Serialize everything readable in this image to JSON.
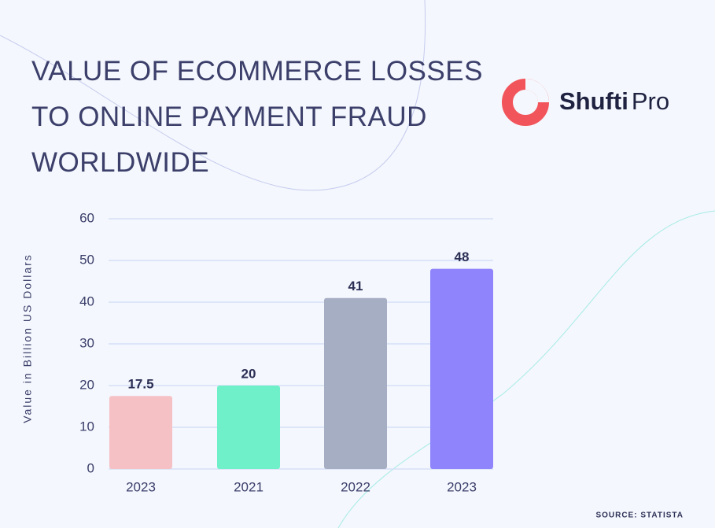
{
  "chart_data": {
    "type": "bar",
    "title": "VALUE OF ECOMMERCE LOSSES TO ONLINE PAYMENT FRAUD WORLDWIDE",
    "y_label": "Value in Billion US Dollars",
    "categories": [
      "2023",
      "2021",
      "2022",
      "2023"
    ],
    "values": [
      17.5,
      20,
      41,
      48
    ],
    "colors": [
      "#f5c1c4",
      "#6ff0c9",
      "#a6aec4",
      "#8f84fb"
    ],
    "ylim": [
      0,
      60
    ],
    "yticks": [
      0,
      10,
      20,
      30,
      40,
      50,
      60
    ],
    "grid": true,
    "source": "SOURCE: STATISTA"
  },
  "logo": {
    "brand": "Shufti",
    "suffix": "Pro"
  }
}
